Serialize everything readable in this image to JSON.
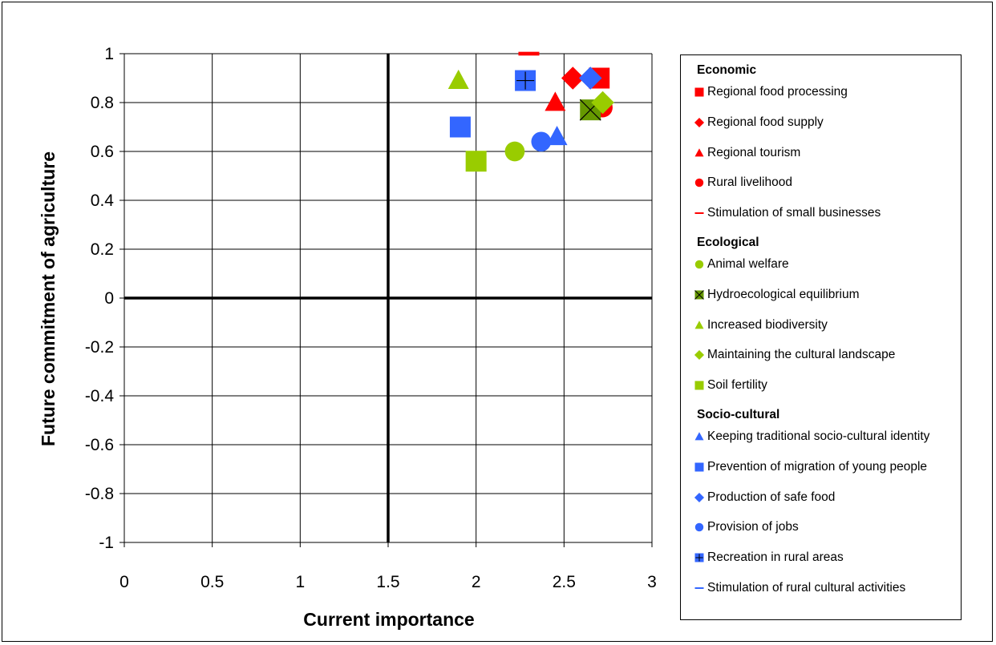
{
  "chart_data": {
    "type": "scatter",
    "xlabel": "Current importance",
    "ylabel": "Future commitment of agriculture",
    "xlim": [
      0,
      3
    ],
    "ylim": [
      -1,
      1
    ],
    "xticks": [
      "0",
      "0.5",
      "1",
      "1.5",
      "2",
      "2.5",
      "3"
    ],
    "yticks": [
      "1",
      "0.8",
      "0.6",
      "0.4",
      "0.2",
      "0",
      "-0.2",
      "-0.4",
      "-0.6",
      "-0.8",
      "-1"
    ],
    "reference_lines": {
      "x": 1.5,
      "y": 0
    },
    "grid": true,
    "legend_position": "right",
    "groups": [
      {
        "name": "Economic",
        "series": [
          {
            "name": "Regional food processing",
            "marker": "square",
            "color": "#ff0000",
            "x": 2.7,
            "y": 0.9
          },
          {
            "name": "Regional food supply",
            "marker": "diamond",
            "color": "#ff0000",
            "x": 2.55,
            "y": 0.9
          },
          {
            "name": "Regional tourism",
            "marker": "triangle",
            "color": "#ff0000",
            "x": 2.45,
            "y": 0.8
          },
          {
            "name": "Rural livelihood",
            "marker": "circle",
            "color": "#ff0000",
            "x": 2.72,
            "y": 0.78
          },
          {
            "name": "Stimulation of small businesses",
            "marker": "dash",
            "color": "#ff0000",
            "x": 2.3,
            "y": 1.0
          }
        ]
      },
      {
        "name": "Ecological",
        "series": [
          {
            "name": "Animal welfare",
            "marker": "circle",
            "color": "#99cc00",
            "x": 2.22,
            "y": 0.6
          },
          {
            "name": "Hydroecological equilibrium",
            "marker": "xsquare",
            "color": "#669900",
            "x": 2.65,
            "y": 0.77
          },
          {
            "name": "Increased biodiversity",
            "marker": "triangle",
            "color": "#99cc00",
            "x": 1.9,
            "y": 0.89
          },
          {
            "name": "Maintaining the cultural landscape",
            "marker": "diamond",
            "color": "#99cc00",
            "x": 2.72,
            "y": 0.8
          },
          {
            "name": "Soil fertility",
            "marker": "square",
            "color": "#99cc00",
            "x": 2.0,
            "y": 0.56
          }
        ]
      },
      {
        "name": "Socio-cultural",
        "series": [
          {
            "name": "Keeping traditional socio-cultural identity",
            "marker": "triangle",
            "color": "#3366ff",
            "x": 2.46,
            "y": 0.66
          },
          {
            "name": "Prevention of migration of young people",
            "marker": "square",
            "color": "#3366ff",
            "x": 1.91,
            "y": 0.7
          },
          {
            "name": "Production of safe food",
            "marker": "diamond",
            "color": "#3366ff",
            "x": 2.65,
            "y": 0.9
          },
          {
            "name": "Provision of jobs",
            "marker": "circle",
            "color": "#3366ff",
            "x": 2.37,
            "y": 0.64
          },
          {
            "name": "Recreation in rural areas",
            "marker": "plussquare",
            "color": "#3366ff",
            "x": 2.28,
            "y": 0.89
          },
          {
            "name": "Stimulation of rural cultural activities",
            "marker": "dash",
            "color": "#3366ff",
            "x": null,
            "y": null
          }
        ]
      }
    ]
  }
}
